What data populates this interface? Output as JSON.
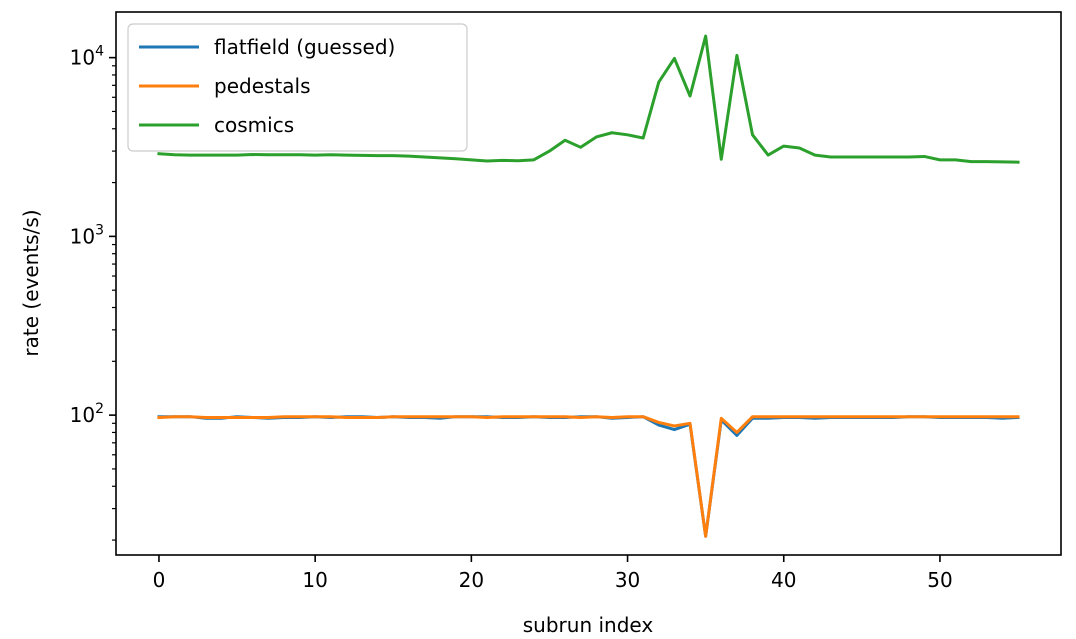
{
  "chart_data": {
    "type": "line",
    "title": "",
    "xlabel": "subrun index",
    "ylabel": "rate (events/s)",
    "yscale": "log",
    "xlim": [
      -2.75,
      57.75
    ],
    "ylim": [
      16.5,
      18000
    ],
    "grid": false,
    "legend_position": "top-left",
    "x_ticks": [
      0,
      10,
      20,
      30,
      40,
      50
    ],
    "y_ticks": [
      {
        "value": 100,
        "base": "10",
        "exp": "2"
      },
      {
        "value": 1000,
        "base": "10",
        "exp": "3"
      },
      {
        "value": 10000,
        "base": "10",
        "exp": "4"
      }
    ],
    "x": [
      0,
      1,
      2,
      3,
      4,
      5,
      6,
      7,
      8,
      9,
      10,
      11,
      12,
      13,
      14,
      15,
      16,
      17,
      18,
      19,
      20,
      21,
      22,
      23,
      24,
      25,
      26,
      27,
      28,
      29,
      30,
      31,
      32,
      33,
      34,
      35,
      36,
      37,
      38,
      39,
      40,
      41,
      42,
      43,
      44,
      45,
      46,
      47,
      48,
      49,
      50,
      51,
      52,
      53,
      54,
      55
    ],
    "series": [
      {
        "name": "flatfield (guessed)",
        "color": "#1f77b4",
        "values": [
          98,
          98,
          98,
          96,
          96,
          98,
          97,
          96,
          97,
          97,
          98,
          97,
          98,
          98,
          97,
          98,
          97,
          97,
          96,
          98,
          98,
          98,
          97,
          97,
          98,
          97,
          97,
          98,
          98,
          96,
          97,
          98,
          88,
          83,
          89,
          21,
          94,
          77,
          96,
          96,
          97,
          97,
          96,
          97,
          97,
          97,
          97,
          97,
          98,
          98,
          97,
          97,
          97,
          97,
          96,
          97
        ]
      },
      {
        "name": "pedestals",
        "color": "#ff7f0e",
        "values": [
          97,
          98,
          98,
          97,
          97,
          97,
          97,
          97,
          98,
          98,
          98,
          98,
          97,
          97,
          97,
          98,
          98,
          98,
          98,
          98,
          98,
          97,
          98,
          98,
          98,
          98,
          98,
          97,
          98,
          97,
          98,
          98,
          91,
          87,
          90,
          21,
          96,
          80,
          98,
          98,
          98,
          98,
          98,
          98,
          98,
          98,
          98,
          98,
          98,
          98,
          98,
          98,
          98,
          98,
          98,
          98
        ]
      },
      {
        "name": "cosmics",
        "color": "#2ca02c",
        "values": [
          2900,
          2860,
          2850,
          2850,
          2850,
          2850,
          2870,
          2860,
          2860,
          2860,
          2850,
          2860,
          2850,
          2840,
          2830,
          2830,
          2810,
          2780,
          2750,
          2720,
          2680,
          2640,
          2660,
          2650,
          2680,
          3000,
          3450,
          3150,
          3600,
          3800,
          3700,
          3550,
          7300,
          9900,
          6100,
          13200,
          2700,
          10300,
          3700,
          2850,
          3200,
          3120,
          2850,
          2780,
          2780,
          2780,
          2780,
          2780,
          2780,
          2800,
          2680,
          2680,
          2620,
          2620,
          2610,
          2600
        ]
      }
    ]
  }
}
